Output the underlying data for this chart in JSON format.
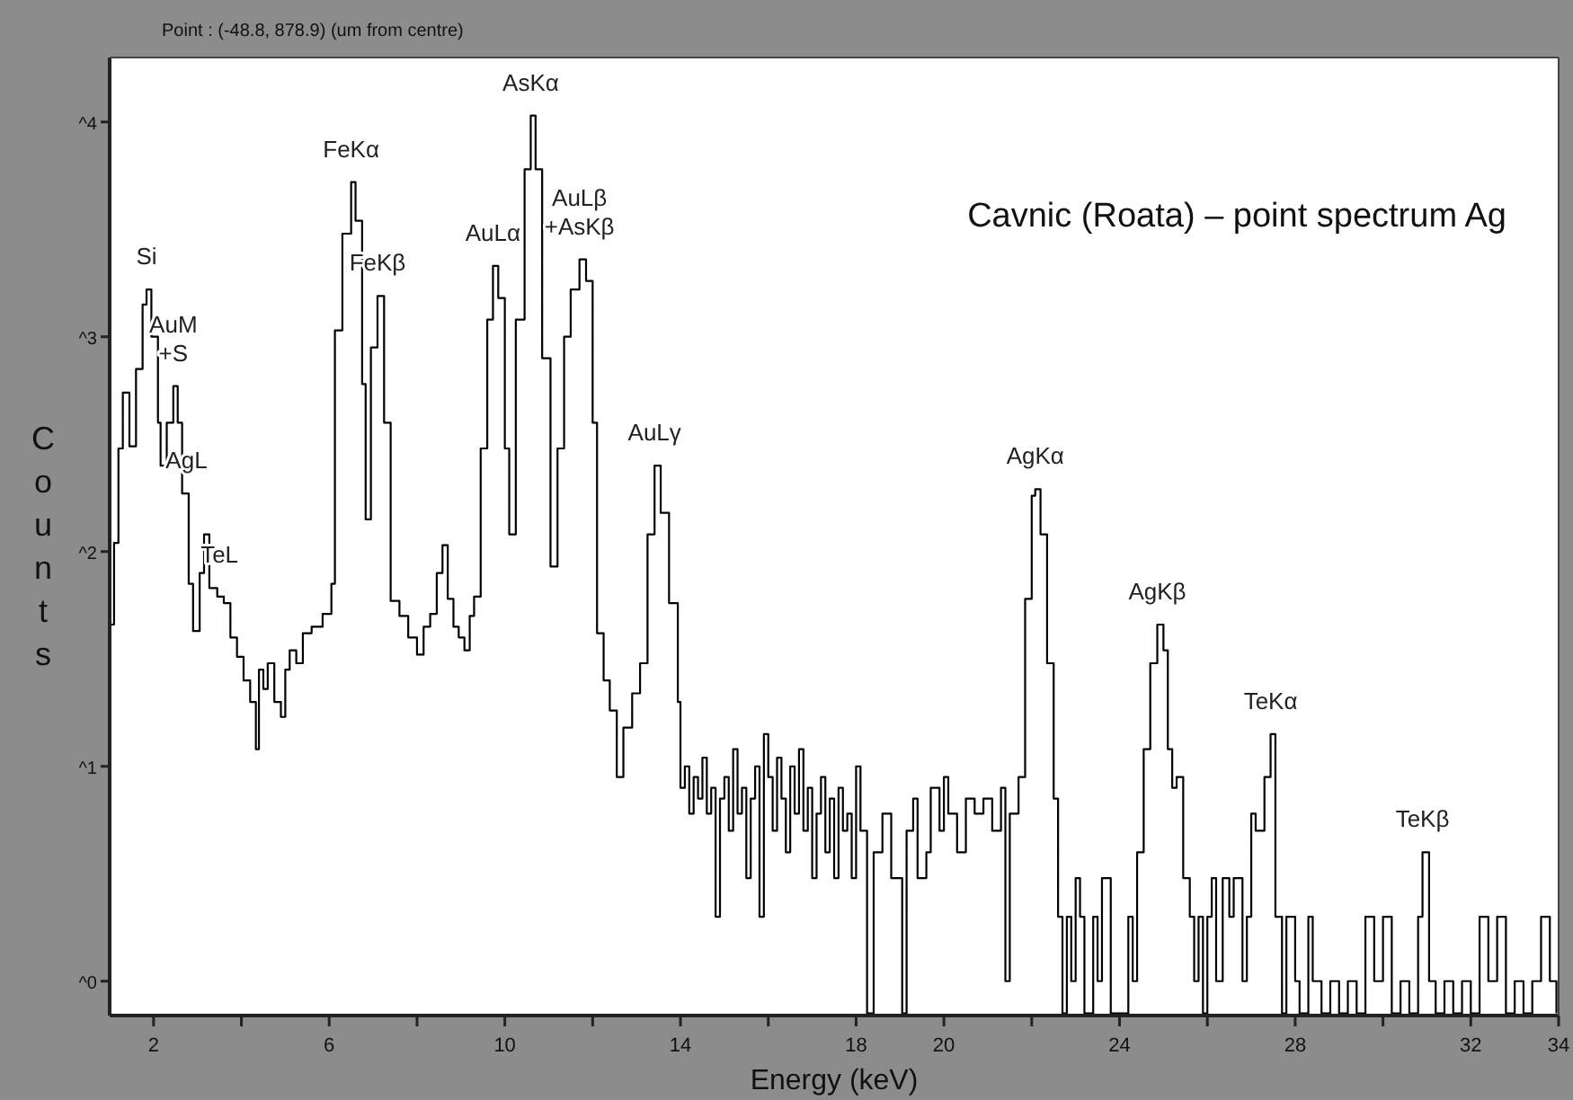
{
  "chart_data": {
    "type": "step",
    "title": "Cavnic (Roata) – point spectrum Ag",
    "subtitle": "Point : (-48.8, 878.9) (um from centre)",
    "xlabel": "Energy (keV)",
    "ylabel": "Counts",
    "grid": false,
    "marker": "none",
    "line_style": "solid",
    "xlim": [
      1,
      34
    ],
    "xticks": [
      2,
      {
        "value": 4,
        "label": null
      },
      6,
      {
        "value": 8,
        "label": null
      },
      10,
      {
        "value": 12,
        "label": null
      },
      14,
      {
        "value": 16,
        "label": null
      },
      18,
      20,
      {
        "value": 22,
        "label": null
      },
      24,
      {
        "value": 26,
        "label": null
      },
      28,
      {
        "value": 30,
        "label": null
      },
      32,
      34
    ],
    "ylim": [
      -0.16,
      4.3
    ],
    "yticks": [
      {
        "value": 0,
        "label": "^0"
      },
      {
        "value": 1,
        "label": "^1"
      },
      {
        "value": 2,
        "label": "^2"
      },
      {
        "value": 3,
        "label": "^3"
      },
      {
        "value": 4,
        "label": "^4"
      }
    ],
    "annotations": [
      {
        "text": "Si",
        "x": 1.84,
        "y": 3.22
      },
      {
        "text": "AuM\n+S",
        "x": 2.45,
        "y": 2.77
      },
      {
        "text": "AgL",
        "x": 2.75,
        "y": 2.27
      },
      {
        "text": "TeL",
        "x": 3.5,
        "y": 1.83
      },
      {
        "text": "FeKα",
        "x": 6.5,
        "y": 3.72
      },
      {
        "text": "FeKβ",
        "x": 7.1,
        "y": 3.19
      },
      {
        "text": "AuLα",
        "x": 9.73,
        "y": 3.33
      },
      {
        "text": "AsKα",
        "x": 10.59,
        "y": 4.03
      },
      {
        "text": "AuLβ\n+AsKβ",
        "x": 11.7,
        "y": 3.36
      },
      {
        "text": "AuLγ",
        "x": 13.41,
        "y": 2.4
      },
      {
        "text": "AgKα",
        "x": 22.08,
        "y": 2.29
      },
      {
        "text": "AgKβ",
        "x": 24.86,
        "y": 1.66
      },
      {
        "text": "TeKα",
        "x": 27.44,
        "y": 1.15
      },
      {
        "text": "TeKβ",
        "x": 30.9,
        "y": 0.6
      }
    ],
    "series": [
      {
        "color": "#000000",
        "x": [
          1.0,
          1.1,
          1.2,
          1.3,
          1.45,
          1.6,
          1.75,
          1.84,
          1.95,
          2.1,
          2.16,
          2.3,
          2.45,
          2.55,
          2.65,
          2.8,
          2.9,
          3.05,
          3.15,
          3.27,
          3.45,
          3.6,
          3.75,
          3.9,
          4.05,
          4.2,
          4.33,
          4.4,
          4.5,
          4.6,
          4.75,
          4.9,
          5.0,
          5.1,
          5.25,
          5.4,
          5.6,
          5.85,
          6.05,
          6.13,
          6.3,
          6.5,
          6.6,
          6.75,
          6.83,
          6.95,
          7.1,
          7.25,
          7.4,
          7.6,
          7.8,
          8.0,
          8.15,
          8.3,
          8.45,
          8.58,
          8.7,
          8.83,
          8.95,
          9.08,
          9.2,
          9.3,
          9.45,
          9.6,
          9.73,
          9.85,
          10.0,
          10.1,
          10.25,
          10.45,
          10.59,
          10.7,
          10.85,
          11.04,
          11.2,
          11.35,
          11.5,
          11.7,
          11.85,
          12.0,
          12.1,
          12.25,
          12.39,
          12.55,
          12.7,
          12.9,
          13.08,
          13.25,
          13.41,
          13.55,
          13.74,
          13.94,
          14.0,
          14.1,
          14.2,
          14.3,
          14.4,
          14.5,
          14.6,
          14.7,
          14.8,
          14.9,
          15.0,
          15.1,
          15.2,
          15.3,
          15.4,
          15.5,
          15.6,
          15.7,
          15.8,
          15.9,
          16.0,
          16.1,
          16.2,
          16.3,
          16.4,
          16.5,
          16.6,
          16.7,
          16.8,
          16.9,
          17.0,
          17.1,
          17.2,
          17.3,
          17.4,
          17.5,
          17.6,
          17.7,
          17.8,
          17.9,
          18.0,
          18.1,
          18.25,
          18.4,
          18.6,
          18.8,
          19.05,
          19.15,
          19.3,
          19.4,
          19.6,
          19.7,
          19.9,
          20.0,
          20.1,
          20.3,
          20.5,
          20.7,
          20.9,
          21.1,
          21.3,
          21.4,
          21.5,
          21.7,
          21.85,
          22.0,
          22.08,
          22.2,
          22.35,
          22.5,
          22.6,
          22.7,
          22.8,
          22.9,
          23.0,
          23.1,
          23.2,
          23.4,
          23.5,
          23.6,
          23.8,
          24.0,
          24.2,
          24.3,
          24.4,
          24.55,
          24.7,
          24.86,
          25.0,
          25.1,
          25.2,
          25.3,
          25.45,
          25.6,
          25.7,
          25.8,
          25.9,
          26.0,
          26.1,
          26.2,
          26.35,
          26.5,
          26.6,
          26.8,
          26.9,
          27.0,
          27.1,
          27.3,
          27.44,
          27.55,
          27.7,
          27.8,
          28.0,
          28.1,
          28.3,
          28.4,
          28.6,
          28.8,
          29.0,
          29.2,
          29.4,
          29.6,
          29.8,
          30.0,
          30.2,
          30.4,
          30.6,
          30.8,
          30.9,
          31.05,
          31.2,
          31.4,
          31.6,
          31.8,
          32.0,
          32.2,
          32.4,
          32.6,
          32.8,
          33.0,
          33.2,
          33.4,
          33.6,
          33.8,
          33.95
        ],
        "values": [
          1.66,
          2.04,
          2.48,
          2.74,
          2.49,
          2.85,
          3.15,
          3.22,
          3,
          2.6,
          2.4,
          2.6,
          2.77,
          2.6,
          2.27,
          1.85,
          1.63,
          1.9,
          2.08,
          1.83,
          1.79,
          1.76,
          1.6,
          1.51,
          1.4,
          1.3,
          1.08,
          1.45,
          1.36,
          1.48,
          1.3,
          1.23,
          1.45,
          1.54,
          1.48,
          1.62,
          1.65,
          1.71,
          1.85,
          3.03,
          3.48,
          3.72,
          3.54,
          2.78,
          2.15,
          2.95,
          3.19,
          2.6,
          1.77,
          1.7,
          1.6,
          1.52,
          1.65,
          1.71,
          1.9,
          2.03,
          1.78,
          1.65,
          1.6,
          1.54,
          1.7,
          1.79,
          2.48,
          3.08,
          3.33,
          3.18,
          2.48,
          2.08,
          3.08,
          3.78,
          4.03,
          3.78,
          2.9,
          1.93,
          2.48,
          3,
          3.22,
          3.36,
          3.26,
          2.6,
          1.62,
          1.4,
          1.26,
          0.95,
          1.18,
          1.34,
          1.48,
          2.08,
          2.4,
          2.18,
          1.76,
          1.3,
          0.9,
          1,
          0.78,
          0.95,
          0.85,
          1.04,
          0.78,
          0.9,
          0.3,
          0.85,
          0.95,
          0.7,
          1.08,
          0.78,
          0.9,
          0.48,
          0.85,
          1,
          0.3,
          1.15,
          0.95,
          0.7,
          1.04,
          0.85,
          0.6,
          1,
          0.78,
          1.08,
          0.7,
          0.9,
          0.48,
          0.78,
          0.95,
          0.6,
          0.85,
          0.48,
          0.9,
          0.7,
          0.78,
          0.48,
          1,
          0.7,
          -0.15,
          0.6,
          0.78,
          0.48,
          -0.15,
          0.7,
          0.85,
          0.48,
          0.6,
          0.9,
          0.7,
          0.95,
          0.78,
          0.6,
          0.85,
          0.78,
          0.85,
          0.7,
          0.9,
          0,
          0.78,
          0.95,
          1.78,
          2.26,
          2.29,
          2.08,
          1.48,
          0.85,
          0.3,
          -0.15,
          0.3,
          0,
          0.48,
          0.3,
          -0.15,
          0.3,
          0,
          0.48,
          -0.15,
          -0.15,
          0.3,
          0,
          0.6,
          1.08,
          1.48,
          1.66,
          1.54,
          1.08,
          0.9,
          0.95,
          0.48,
          0.3,
          0,
          0.3,
          -0.15,
          0.3,
          0.48,
          0,
          0.48,
          0.3,
          0.48,
          0,
          0.3,
          0.78,
          0.7,
          0.95,
          1.15,
          0.3,
          -0.15,
          0.3,
          0,
          -0.15,
          0.3,
          0,
          -0.15,
          0,
          -0.15,
          0,
          -0.15,
          0.3,
          0,
          0.3,
          -0.15,
          0,
          -0.15,
          0.3,
          0.6,
          0,
          -0.15,
          0,
          -0.15,
          0,
          -0.15,
          0.3,
          0,
          0.3,
          -0.15,
          0,
          -0.15,
          0,
          0.3,
          0,
          -0.15
        ]
      }
    ]
  }
}
